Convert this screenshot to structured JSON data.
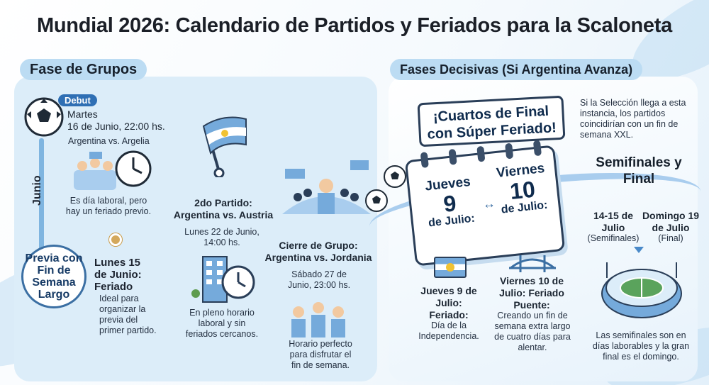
{
  "title": "Mundial 2026: Calendario de Partidos y Feriados para la Scaloneta",
  "colors": {
    "panel_light_blue": "#dcedf9",
    "pill": "#bcdcf3",
    "accent_blue": "#2f6fb4",
    "flag_blue": "#75aadb",
    "sun": "#f1c232",
    "dot_gold": "#d4a85b"
  },
  "group_stage": {
    "heading": "Fase de Grupos",
    "month_label": "Junio",
    "match1": {
      "badge": "Debut",
      "date": "Martes\n16 de Junio, 22:00 hs.",
      "teams": "Argentina vs. Argelia",
      "note": "Es día laboral, pero hay un feriado previo.",
      "icon": "soccer-ball-icon"
    },
    "preview": {
      "label": "Previa con Fin de Semana Largo",
      "date": "Lunes 15 de Junio: Feriado",
      "note": "Ideal para organizar la previa del primer partido."
    },
    "match2": {
      "title": "2do Partido: Argentina vs. Austria",
      "date": "Lunes 22 de Junio, 14:00 hs.",
      "note": "En pleno horario laboral y sin feriados cercanos.",
      "icon": "office-clock-icon"
    },
    "match3": {
      "title": "Cierre de Grupo: Argentina vs. Jordania",
      "date": "Sábado 27 de Junio, 23:00 hs.",
      "note": "Horario perfecto para disfrutar el fin de semana.",
      "icon": "fans-celebrating-icon"
    }
  },
  "knockout": {
    "heading": "Fases Decisivas (Si Argentina Avanza)",
    "banner": "¡Cuartos de Final con Súper Feriado!",
    "intro": "Si la Selección llega a esta instancia, los partidos coincidirían con un fin de semana XXL.",
    "calendar_left": {
      "day": "Jueves",
      "num": "9",
      "month": "de Julio:"
    },
    "calendar_right": {
      "day": "Viernes",
      "num": "10",
      "month": "de Julio:"
    },
    "thursday": {
      "title": "Jueves 9 de Julio: Feriado:",
      "note": "Día de la Independencia."
    },
    "friday": {
      "title": "Viernes 10 de Julio: Feriado Puente:",
      "note": "Creando un fin de semana extra largo de cuatro días para alentar."
    },
    "semis_final": {
      "heading": "Semifinales y Final",
      "semis_date": "14-15 de Julio",
      "semis_label": "(Semifinales)",
      "final_date": "Domingo 19 de Julio",
      "final_label": "(Final)",
      "note": "Las semifinales son en días laborables y la gran final es el domingo.",
      "icon": "stadium-icon"
    }
  }
}
